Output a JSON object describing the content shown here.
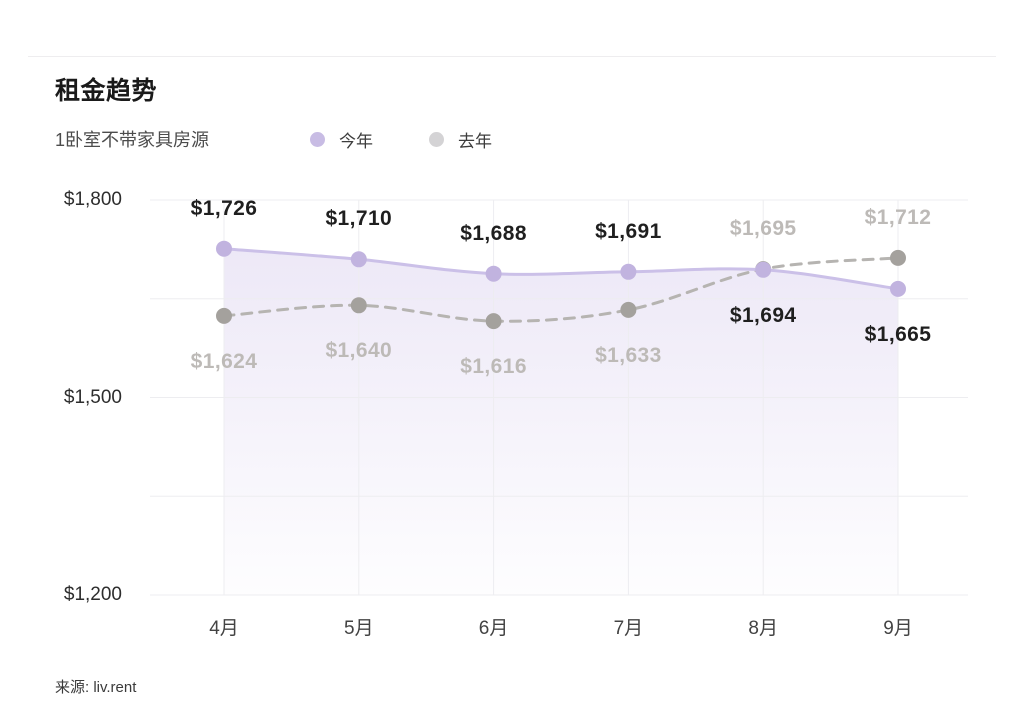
{
  "header": {
    "title": "租金趋势",
    "subtitle": "1卧室不带家具房源"
  },
  "source": "来源: liv.rent",
  "chart_data": {
    "type": "line",
    "title": "租金趋势",
    "subtitle": "1卧室不带家具房源",
    "categories": [
      "4月",
      "5月",
      "6月",
      "7月",
      "8月",
      "9月"
    ],
    "series": [
      {
        "name": "今年",
        "values": [
          1726,
          1710,
          1688,
          1691,
          1694,
          1665
        ],
        "labels": [
          "$1,726",
          "$1,710",
          "$1,688",
          "$1,691",
          "$1,694",
          "$1,665"
        ],
        "label_placement": [
          "above",
          "above",
          "above",
          "above",
          "below",
          "below"
        ],
        "line_style": "solid",
        "area": true,
        "line_color": "#cbc0e8",
        "marker_color": "#c1b3df",
        "legend_color": "#c8bce4",
        "label_color_key": "dark"
      },
      {
        "name": "去年",
        "values": [
          1624,
          1640,
          1616,
          1633,
          1695,
          1712
        ],
        "labels": [
          "$1,624",
          "$1,640",
          "$1,616",
          "$1,633",
          "$1,695",
          "$1,712"
        ],
        "label_placement": [
          "below",
          "below",
          "below",
          "below",
          "above",
          "above"
        ],
        "line_style": "dashed",
        "area": false,
        "line_color": "#b6b4b1",
        "marker_color": "#a4a19d",
        "legend_color": "#d4d3d5",
        "label_color_key": "muted"
      }
    ],
    "y_axis": {
      "min": 1200,
      "max": 1800,
      "gridline_step": 150,
      "labeled_ticks": [
        {
          "label": "$1,800",
          "value": 1800
        },
        {
          "label": "$1,500",
          "value": 1500
        },
        {
          "label": "$1,200",
          "value": 1200
        }
      ]
    },
    "ylim": [
      1200,
      1800
    ],
    "grid": true,
    "legend_position": "top",
    "colors": {
      "area_fill_base": "#b29edc",
      "gridline": "#ededf0",
      "background": "#ffffff"
    }
  }
}
